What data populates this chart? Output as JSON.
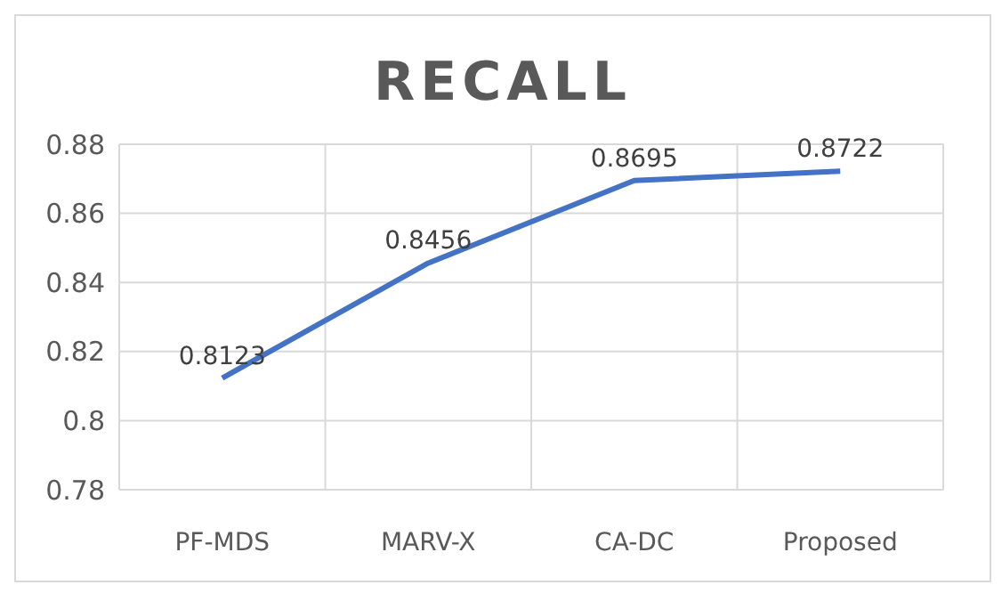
{
  "chart_data": {
    "type": "line",
    "title": "RECALL",
    "categories": [
      "PF-MDS",
      "MARV-X",
      "CA-DC",
      "Proposed"
    ],
    "series": [
      {
        "color": "#4472c4",
        "values": [
          0.8123,
          0.8456,
          0.8695,
          0.8722
        ]
      }
    ],
    "ylim": [
      0.78,
      0.88
    ],
    "yticks": [
      0.78,
      {
        "value": 0.8,
        "label": "0.8"
      },
      0.82,
      0.84,
      0.86,
      0.88
    ],
    "grid": true,
    "data_labels": true,
    "marker": "none"
  }
}
